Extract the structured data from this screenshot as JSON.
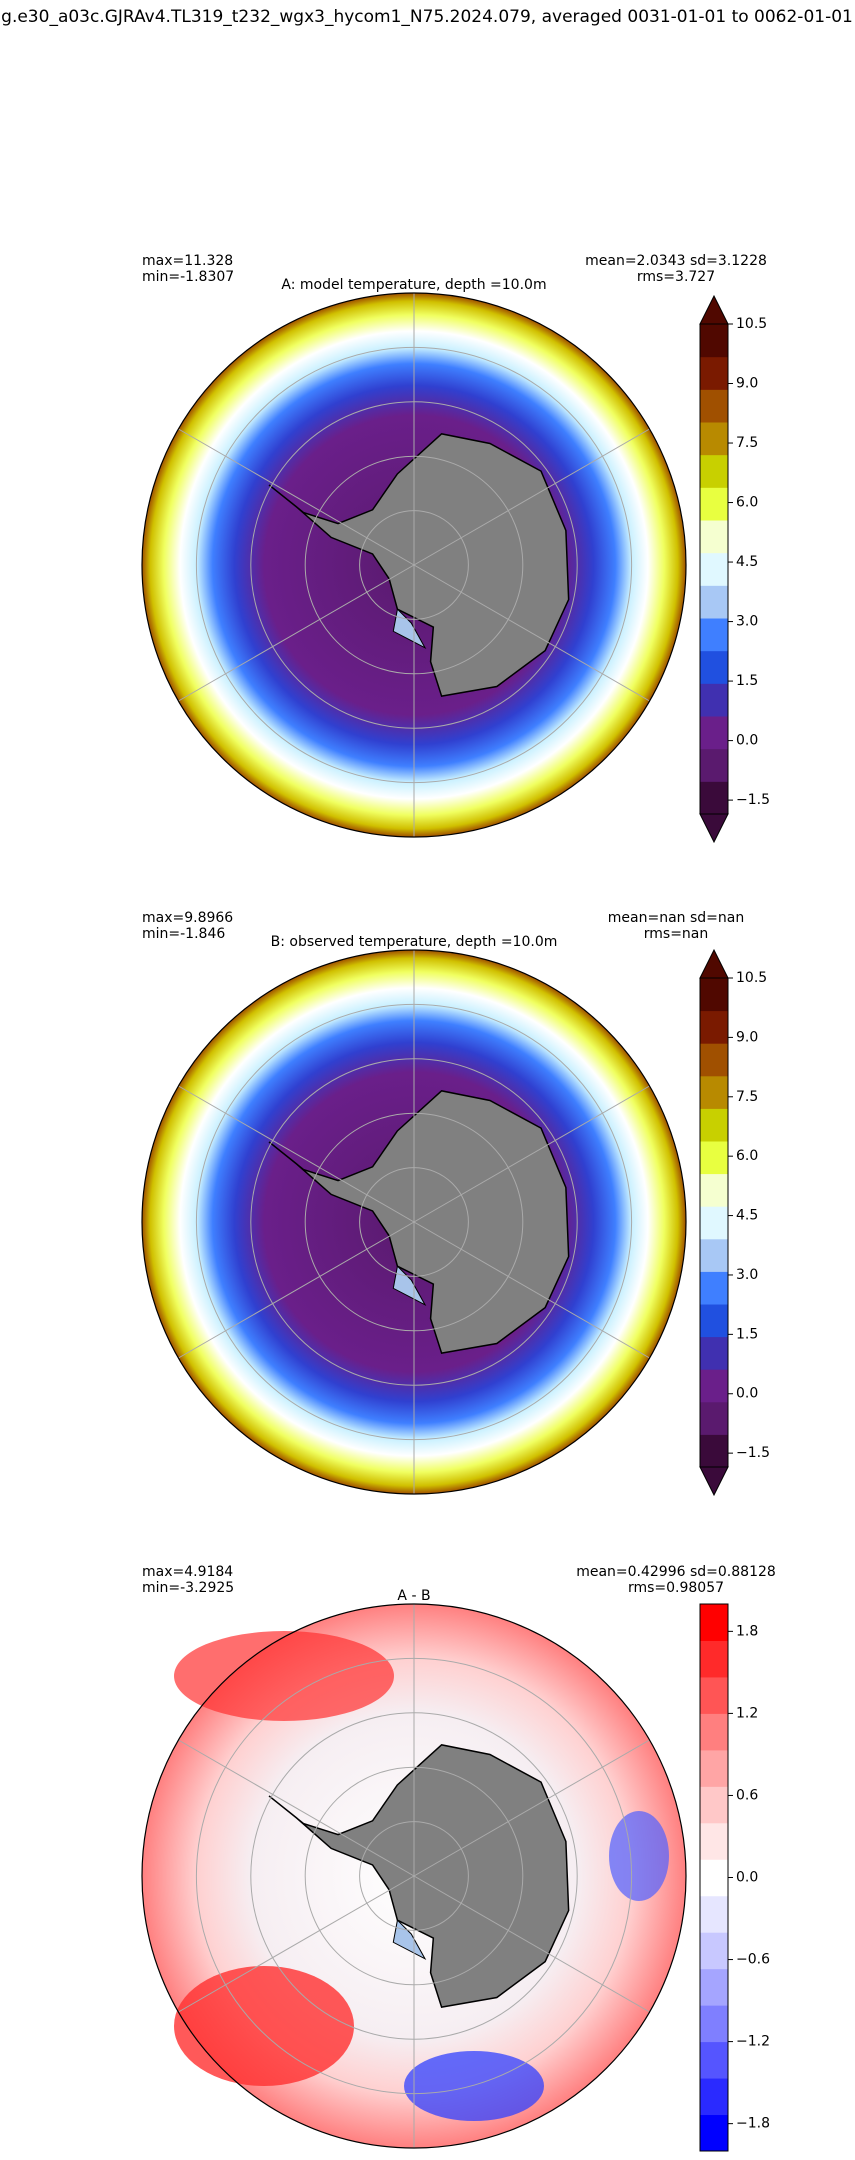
{
  "title": "g.e30_a03c.GJRAv4.TL319_t232_wgx3_hycom1_N75.2024.079, averaged 0031-01-01 to 0062-01-01",
  "panels": [
    {
      "stats_left": [
        "max=11.328",
        "min=-1.8307"
      ],
      "stats_right": [
        "mean=2.0343 sd=3.1228",
        "rms=3.727"
      ],
      "title": "A: model temperature, depth =10.0m",
      "colorbar": {
        "lim": [
          -1.85,
          10.5
        ],
        "extend": true,
        "colors": [
          "#3a0a3a",
          "#5a1a6e",
          "#6a1f8a",
          "#4030b0",
          "#2050e0",
          "#3f7fff",
          "#a8c8f5",
          "#e0f8ff",
          "#f5ffd0",
          "#e8ff40",
          "#c8d000",
          "#b88a00",
          "#a05000",
          "#7a1a00",
          "#500800"
        ],
        "ticks": [
          {
            "value": 10.5,
            "label": "10.5"
          },
          {
            "value": 9,
            "label": "9.0"
          },
          {
            "value": 7.5,
            "label": "7.5"
          },
          {
            "value": 6,
            "label": "6.0"
          },
          {
            "value": 4.5,
            "label": "4.5"
          },
          {
            "value": 3,
            "label": "3.0"
          },
          {
            "value": 1.5,
            "label": "1.5"
          },
          {
            "value": 0,
            "label": "0.0"
          },
          {
            "value": -1.5,
            "label": "−1.5"
          }
        ]
      }
    },
    {
      "stats_left": [
        "max=9.8966",
        "min=-1.846"
      ],
      "stats_right": [
        "mean=nan sd=nan",
        "rms=nan"
      ],
      "title": "B: observed temperature, depth =10.0m",
      "colorbar": {
        "lim": [
          -1.85,
          10.5
        ],
        "extend": true,
        "colors": [
          "#3a0a3a",
          "#5a1a6e",
          "#6a1f8a",
          "#4030b0",
          "#2050e0",
          "#3f7fff",
          "#a8c8f5",
          "#e0f8ff",
          "#f5ffd0",
          "#e8ff40",
          "#c8d000",
          "#b88a00",
          "#a05000",
          "#7a1a00",
          "#500800"
        ],
        "ticks": [
          {
            "value": 10.5,
            "label": "10.5"
          },
          {
            "value": 9,
            "label": "9.0"
          },
          {
            "value": 7.5,
            "label": "7.5"
          },
          {
            "value": 6,
            "label": "6.0"
          },
          {
            "value": 4.5,
            "label": "4.5"
          },
          {
            "value": 3,
            "label": "3.0"
          },
          {
            "value": 1.5,
            "label": "1.5"
          },
          {
            "value": 0,
            "label": "0.0"
          },
          {
            "value": -1.5,
            "label": "−1.5"
          }
        ]
      }
    },
    {
      "stats_left": [
        "max=4.9184",
        "min=-3.2925"
      ],
      "stats_right": [
        "mean=0.42996 sd=0.88128",
        "rms=0.98057"
      ],
      "title": "A - B",
      "colorbar": {
        "lim": [
          -2,
          2
        ],
        "extend": false,
        "colors": [
          "#0000ff",
          "#2a2aff",
          "#5555ff",
          "#7f7fff",
          "#a5a5ff",
          "#c8c8ff",
          "#e6e6ff",
          "#ffffff",
          "#ffe6e6",
          "#ffc8c8",
          "#ffa5a5",
          "#ff7f7f",
          "#ff5555",
          "#ff2a2a",
          "#ff0000"
        ],
        "ticks": [
          {
            "value": 1.8,
            "label": "1.8"
          },
          {
            "value": 1.2,
            "label": "1.2"
          },
          {
            "value": 0.6,
            "label": "0.6"
          },
          {
            "value": 0,
            "label": "0.0"
          },
          {
            "value": -0.6,
            "label": "−0.6"
          },
          {
            "value": -1.2,
            "label": "−1.2"
          },
          {
            "value": -1.8,
            "label": "−1.8"
          }
        ]
      }
    }
  ]
}
